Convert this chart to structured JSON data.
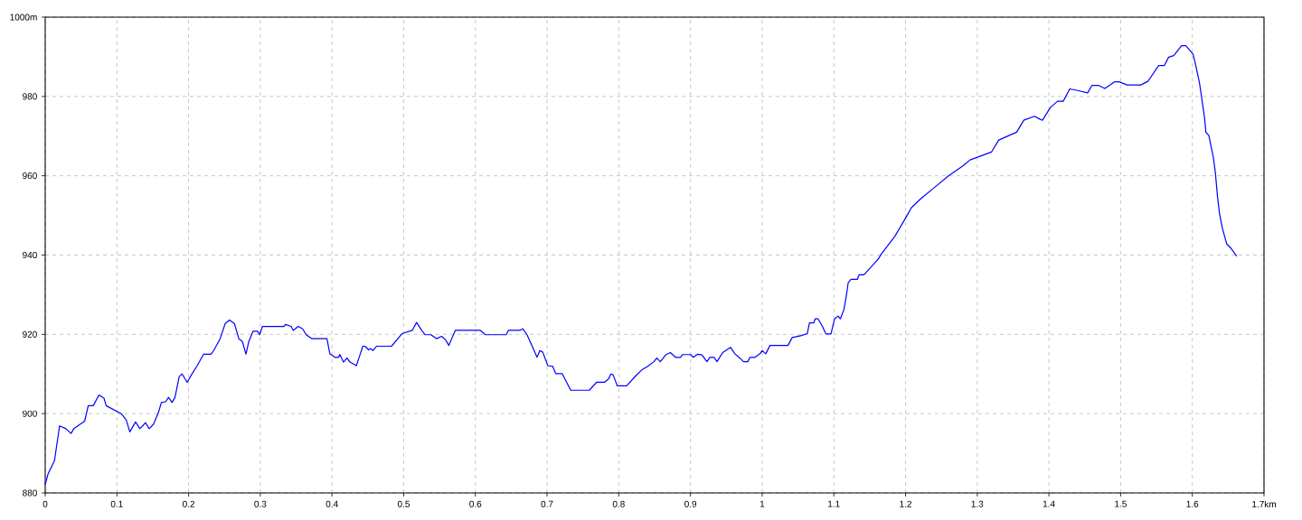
{
  "chart_data": {
    "type": "line",
    "color": "#0000ff",
    "grid": true,
    "xlim": [
      0,
      1.7
    ],
    "ylim": [
      880,
      1000
    ],
    "xticks": [
      0,
      0.1,
      0.2,
      0.3,
      0.4,
      0.5,
      0.6,
      0.7,
      0.8,
      0.9,
      1,
      1.1,
      1.2,
      1.3,
      1.4,
      1.5,
      1.6,
      {
        "value": 1.7,
        "label": "1.7km"
      }
    ],
    "yticks": [
      880,
      900,
      920,
      940,
      960,
      980,
      {
        "value": 1000,
        "label": "1000m"
      }
    ],
    "x": [
      0,
      0.004,
      0.013,
      0.02,
      0.029,
      0.036,
      0.04,
      0.055,
      0.06,
      0.067,
      0.075,
      0.082,
      0.085,
      0.106,
      0.113,
      0.118,
      0.126,
      0.132,
      0.14,
      0.145,
      0.151,
      0.158,
      0.162,
      0.168,
      0.172,
      0.177,
      0.181,
      0.187,
      0.191,
      0.198,
      0.204,
      0.212,
      0.221,
      0.231,
      0.235,
      0.244,
      0.251,
      0.257,
      0.264,
      0.27,
      0.275,
      0.28,
      0.284,
      0.29,
      0.296,
      0.299,
      0.303,
      0.333,
      0.335,
      0.343,
      0.346,
      0.353,
      0.359,
      0.364,
      0.372,
      0.393,
      0.395,
      0.397,
      0.404,
      0.409,
      0.411,
      0.416,
      0.421,
      0.425,
      0.434,
      0.439,
      0.443,
      0.446,
      0.451,
      0.454,
      0.457,
      0.462,
      0.483,
      0.498,
      0.512,
      0.518,
      0.525,
      0.53,
      0.538,
      0.546,
      0.553,
      0.559,
      0.563,
      0.572,
      0.607,
      0.614,
      0.643,
      0.646,
      0.662,
      0.666,
      0.672,
      0.68,
      0.686,
      0.69,
      0.694,
      0.701,
      0.708,
      0.712,
      0.721,
      0.733,
      0.759,
      0.769,
      0.78,
      0.786,
      0.789,
      0.792,
      0.798,
      0.811,
      0.824,
      0.832,
      0.84,
      0.849,
      0.853,
      0.858,
      0.866,
      0.872,
      0.879,
      0.886,
      0.889,
      0.9,
      0.904,
      0.91,
      0.916,
      0.923,
      0.927,
      0.933,
      0.937,
      0.945,
      0.956,
      0.962,
      0.969,
      0.974,
      0.98,
      0.983,
      0.99,
      0.997,
      1.0,
      1.005,
      1.011,
      1.036,
      1.042,
      1.055,
      1.063,
      1.066,
      1.072,
      1.074,
      1.078,
      1.084,
      1.089,
      1.096,
      1.101,
      1.106,
      1.109,
      1.114,
      1.117,
      1.12,
      1.124,
      1.133,
      1.135,
      1.142,
      1.162,
      1.166,
      1.185,
      1.2,
      1.208,
      1.22,
      1.24,
      1.26,
      1.28,
      1.29,
      1.32,
      1.33,
      1.355,
      1.365,
      1.38,
      1.387,
      1.391,
      1.402,
      1.412,
      1.42,
      1.429,
      1.44,
      1.454,
      1.46,
      1.469,
      1.478,
      1.492,
      1.498,
      1.509,
      1.528,
      1.538,
      1.553,
      1.561,
      1.567,
      1.574,
      1.585,
      1.591,
      1.601,
      1.605,
      1.61,
      1.613,
      1.617,
      1.619,
      1.623,
      1.629,
      1.632,
      1.635,
      1.638,
      1.642,
      1.648,
      1.654,
      1.662
    ],
    "values": [
      882.1,
      884.8,
      888.2,
      896.9,
      896.2,
      895.0,
      896.2,
      898.1,
      902.0,
      902.0,
      904.7,
      903.9,
      902.0,
      900.0,
      898.4,
      895.4,
      897.9,
      896.2,
      897.7,
      896.2,
      897.3,
      900.3,
      902.8,
      903.0,
      904.1,
      902.8,
      904.1,
      909.4,
      910.0,
      907.9,
      909.8,
      912.1,
      915.0,
      915.0,
      915.9,
      918.9,
      922.7,
      923.6,
      922.7,
      918.9,
      918.2,
      915.0,
      918.2,
      920.8,
      920.8,
      919.9,
      922.0,
      922.0,
      922.5,
      922.0,
      921.0,
      922.0,
      921.4,
      919.9,
      918.9,
      918.9,
      917.0,
      915.1,
      914.2,
      914.2,
      914.9,
      913.0,
      914.0,
      913.0,
      912.1,
      914.8,
      917.0,
      917.0,
      916.1,
      916.4,
      915.9,
      917.0,
      917.0,
      920.2,
      921.0,
      923.0,
      921.0,
      919.9,
      919.9,
      918.9,
      919.5,
      918.5,
      917.2,
      921.0,
      921.0,
      919.9,
      919.9,
      921.0,
      921.0,
      921.4,
      919.9,
      916.7,
      914.2,
      915.9,
      915.5,
      912.1,
      911.9,
      910.1,
      910.1,
      905.9,
      905.9,
      907.9,
      907.9,
      908.8,
      910.0,
      909.8,
      907.0,
      907.0,
      909.6,
      911.0,
      911.9,
      913.1,
      914.0,
      913.1,
      914.9,
      915.4,
      914.2,
      914.2,
      914.9,
      914.9,
      914.2,
      915.0,
      914.8,
      913.1,
      914.2,
      914.2,
      913.1,
      915.4,
      916.7,
      915.1,
      914.0,
      913.1,
      913.1,
      914.2,
      914.2,
      915.1,
      915.9,
      915.1,
      917.2,
      917.2,
      919.2,
      919.7,
      920.2,
      922.9,
      922.9,
      923.9,
      923.9,
      922.0,
      920.1,
      920.1,
      923.9,
      924.6,
      923.9,
      926.2,
      929.2,
      933.0,
      933.9,
      933.9,
      935.0,
      935.0,
      939.0,
      940.2,
      944.7,
      949.3,
      951.9,
      954.0,
      957.0,
      960.0,
      962.5,
      964.0,
      966.0,
      969.0,
      971.0,
      974.0,
      975.0,
      974.3,
      974.0,
      977.2,
      978.8,
      978.8,
      981.9,
      981.5,
      980.9,
      982.8,
      982.8,
      982.0,
      983.7,
      983.7,
      982.9,
      982.9,
      983.8,
      987.8,
      987.8,
      989.9,
      990.3,
      992.8,
      992.8,
      990.7,
      987.7,
      983.4,
      979.7,
      974.7,
      970.9,
      970.2,
      964.9,
      961.1,
      955.0,
      950.4,
      946.7,
      942.8,
      941.7,
      939.7
    ]
  }
}
